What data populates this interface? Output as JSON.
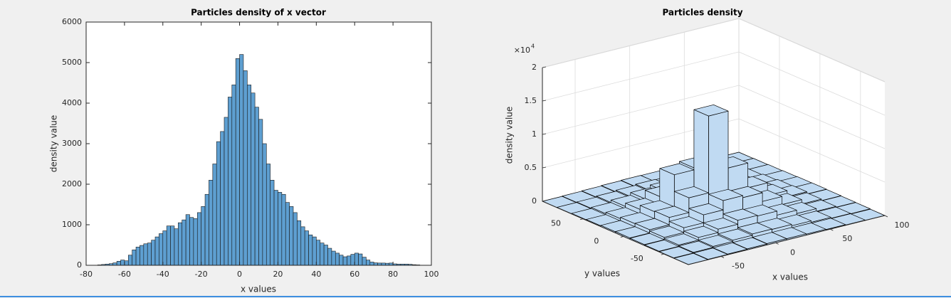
{
  "chart_data": [
    {
      "type": "histogram",
      "title": "Particles density of x vector",
      "xlabel": "x values",
      "ylabel": "density value",
      "bins": [
        -74,
        -72,
        -70,
        -68,
        -66,
        -64,
        -62,
        -60,
        -58,
        -56,
        -54,
        -52,
        -50,
        -48,
        -46,
        -44,
        -42,
        -40,
        -38,
        -36,
        -34,
        -32,
        -30,
        -28,
        -26,
        -24,
        -22,
        -20,
        -18,
        -16,
        -14,
        -12,
        -10,
        -8,
        -6,
        -4,
        -2,
        0,
        2,
        4,
        6,
        8,
        10,
        12,
        14,
        16,
        18,
        20,
        22,
        24,
        26,
        28,
        30,
        32,
        34,
        36,
        38,
        40,
        42,
        44,
        46,
        48,
        50,
        52,
        54,
        56,
        58,
        60,
        62,
        64,
        66,
        68,
        70,
        72,
        74,
        76,
        78,
        80,
        82,
        84,
        86,
        88,
        90,
        92,
        94
      ],
      "values": [
        10,
        20,
        30,
        40,
        60,
        100,
        130,
        110,
        250,
        380,
        450,
        490,
        530,
        550,
        620,
        700,
        780,
        850,
        970,
        970,
        900,
        1050,
        1120,
        1250,
        1180,
        1150,
        1300,
        1450,
        1750,
        2100,
        2500,
        3050,
        3300,
        3650,
        4150,
        4450,
        5100,
        5200,
        4800,
        4450,
        4250,
        3900,
        3600,
        3000,
        2500,
        2100,
        1850,
        1800,
        1750,
        1550,
        1450,
        1300,
        1100,
        950,
        850,
        750,
        700,
        620,
        550,
        500,
        420,
        350,
        300,
        250,
        210,
        230,
        270,
        300,
        280,
        200,
        130,
        80,
        60,
        55,
        55,
        50,
        55,
        35,
        30,
        30,
        30,
        25,
        15,
        10
      ],
      "color": "#5e9fd1",
      "xlim": [
        -80,
        100
      ],
      "ylim": [
        0,
        6000
      ],
      "xticks": [
        -80,
        -60,
        -40,
        -20,
        0,
        20,
        40,
        60,
        80,
        100
      ],
      "yticks": [
        0,
        1000,
        2000,
        3000,
        4000,
        5000,
        6000
      ]
    },
    {
      "type": "bar3d",
      "title": "Particles density",
      "xlabel": "x values",
      "ylabel": "y values",
      "zlabel": "density value",
      "z_multiplier": "×10",
      "z_exponent": "4",
      "x_edges": [
        -80,
        -62,
        -44,
        -26,
        -8,
        10,
        28,
        46,
        64,
        82,
        100
      ],
      "y_edges": [
        -80,
        -62,
        -44,
        -26,
        -8,
        10,
        28,
        46,
        64,
        82,
        100
      ],
      "values": [
        [
          0,
          50,
          100,
          150,
          200,
          200,
          150,
          100,
          50,
          0
        ],
        [
          50,
          150,
          300,
          500,
          700,
          650,
          450,
          250,
          100,
          50
        ],
        [
          100,
          300,
          700,
          1200,
          1800,
          1700,
          1100,
          600,
          200,
          80
        ],
        [
          150,
          500,
          1200,
          2400,
          3800,
          3500,
          2200,
          1000,
          350,
          120
        ],
        [
          200,
          700,
          1800,
          4000,
          15500,
          7000,
          3300,
          1400,
          500,
          150
        ],
        [
          180,
          650,
          1700,
          6500,
          6800,
          5000,
          3000,
          1300,
          450,
          140
        ],
        [
          120,
          450,
          1100,
          2300,
          3400,
          3100,
          2000,
          900,
          300,
          100
        ],
        [
          80,
          250,
          600,
          1000,
          1400,
          1300,
          900,
          450,
          150,
          60
        ],
        [
          40,
          100,
          250,
          400,
          550,
          500,
          350,
          200,
          80,
          30
        ],
        [
          0,
          40,
          90,
          150,
          200,
          180,
          120,
          70,
          30,
          0
        ]
      ],
      "color": "#c0daf2",
      "xlim": [
        -80,
        100
      ],
      "ylim": [
        -80,
        100
      ],
      "zlim": [
        0,
        20000
      ],
      "xticks": [
        -50,
        0,
        50,
        100
      ],
      "yticks": [
        -50,
        0,
        50
      ],
      "zticks": [
        0,
        {
          "value": 5000,
          "label": "0.5"
        },
        {
          "value": 10000,
          "label": "1"
        },
        {
          "value": 15000,
          "label": "1.5"
        },
        {
          "value": 20000,
          "label": "2"
        }
      ],
      "grid": true
    }
  ]
}
